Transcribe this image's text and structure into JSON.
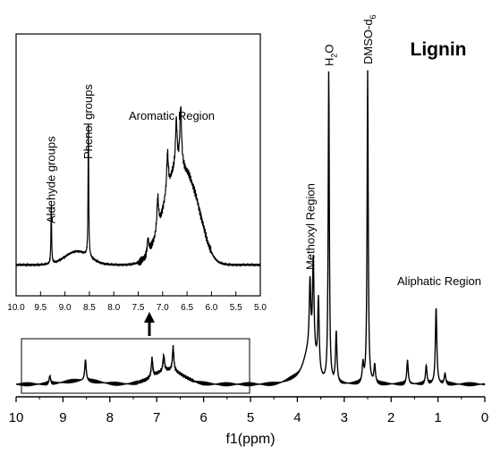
{
  "chart_data": [
    {
      "type": "line",
      "panel": "main",
      "title": "Lignin",
      "xlabel": "f1(ppm)",
      "ylabel": "",
      "x_axis_reversed": true,
      "xlim": [
        10,
        0
      ],
      "x_ticks": [
        "10",
        "9",
        "8",
        "7",
        "6",
        "5",
        "4",
        "3",
        "2",
        "1",
        "0"
      ],
      "y_axis_visible": false,
      "grid": false,
      "peaks": [
        {
          "x": 9.28,
          "y": 0.03
        },
        {
          "x": 8.52,
          "y": 0.08
        },
        {
          "x": 7.1,
          "y": 0.07
        },
        {
          "x": 6.85,
          "y": 0.06
        },
        {
          "x": 6.65,
          "y": 0.09
        },
        {
          "x": 3.73,
          "y": 0.25
        },
        {
          "x": 3.66,
          "y": 0.35
        },
        {
          "x": 3.55,
          "y": 0.27
        },
        {
          "x": 3.33,
          "y": 1.0
        },
        {
          "x": 3.17,
          "y": 0.19
        },
        {
          "x": 2.6,
          "y": 0.07
        },
        {
          "x": 2.5,
          "y": 1.0
        },
        {
          "x": 2.35,
          "y": 0.07
        },
        {
          "x": 1.65,
          "y": 0.09
        },
        {
          "x": 1.25,
          "y": 0.07
        },
        {
          "x": 1.04,
          "y": 0.29
        },
        {
          "x": 0.85,
          "y": 0.04
        }
      ],
      "annotations": [
        {
          "text": "Methoxyl Region",
          "x": 3.73
        },
        {
          "text": "H",
          "sub": "2",
          "tail": "O",
          "x": 3.33
        },
        {
          "text": "DMSO-d",
          "sub": "6",
          "tail": "",
          "x": 2.5
        },
        {
          "text": "Aliphatic Region",
          "x": 1.04
        }
      ]
    },
    {
      "type": "line",
      "panel": "inset",
      "x_axis_reversed": true,
      "xlim": [
        10.0,
        5.0
      ],
      "x_ticks": [
        "10.0",
        "9.5",
        "9.0",
        "8.5",
        "8.0",
        "7.5",
        "7.0",
        "6.5",
        "6.0",
        "5.5",
        "5.0"
      ],
      "y_axis_visible": false,
      "peaks": [
        {
          "x": 9.28,
          "y": 0.31
        },
        {
          "x": 8.52,
          "y": 0.68
        },
        {
          "x": 7.3,
          "y": 0.23
        },
        {
          "x": 7.1,
          "y": 0.48
        },
        {
          "x": 6.9,
          "y": 0.58
        },
        {
          "x": 6.72,
          "y": 0.7
        },
        {
          "x": 6.63,
          "y": 0.87
        }
      ],
      "annotations": [
        {
          "text": "Aldehyde groups",
          "x": 9.28
        },
        {
          "text": "Phenol groups",
          "x": 8.52
        },
        {
          "text": "Aromatic Region",
          "x": 7.3
        }
      ]
    }
  ]
}
